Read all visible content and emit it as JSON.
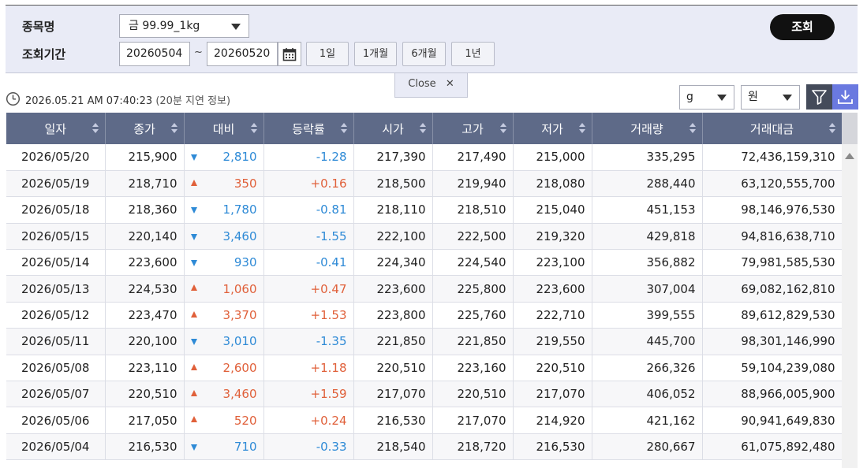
{
  "search": {
    "item_label": "종목명",
    "period_label": "조회기간",
    "item_value": "금 99.99_1kg",
    "date_from": "20260504",
    "date_separator": "~",
    "date_to": "20260520",
    "period_buttons": [
      "1일",
      "1개월",
      "6개월",
      "1년"
    ],
    "search_button": "조회",
    "close_label": "Close"
  },
  "info": {
    "timestamp": "2026.05.21 AM 07:40:23",
    "delay_note": "(20분 지연 정보)"
  },
  "units": {
    "weight": "g",
    "currency": "원"
  },
  "colors": {
    "header_bg": "#5e6a88",
    "up": "#e0603a",
    "down": "#2e8ad6",
    "search_button_bg": "#111111",
    "download_bg": "#6a79e0"
  },
  "table": {
    "columns": [
      "일자",
      "종가",
      "대비",
      "등락률",
      "시가",
      "고가",
      "저가",
      "거래량",
      "거래대금"
    ],
    "rows": [
      {
        "date": "2026/05/20",
        "close": "215,900",
        "dir": "down",
        "change": "2,810",
        "rate": "-1.28",
        "open": "217,390",
        "high": "217,490",
        "low": "215,000",
        "volume": "335,295",
        "amount": "72,436,159,310"
      },
      {
        "date": "2026/05/19",
        "close": "218,710",
        "dir": "up",
        "change": "350",
        "rate": "+0.16",
        "open": "218,500",
        "high": "219,940",
        "low": "218,080",
        "volume": "288,440",
        "amount": "63,120,555,700"
      },
      {
        "date": "2026/05/18",
        "close": "218,360",
        "dir": "down",
        "change": "1,780",
        "rate": "-0.81",
        "open": "218,110",
        "high": "218,510",
        "low": "215,040",
        "volume": "451,153",
        "amount": "98,146,976,530"
      },
      {
        "date": "2026/05/15",
        "close": "220,140",
        "dir": "down",
        "change": "3,460",
        "rate": "-1.55",
        "open": "222,100",
        "high": "222,500",
        "low": "219,320",
        "volume": "429,818",
        "amount": "94,816,638,710"
      },
      {
        "date": "2026/05/14",
        "close": "223,600",
        "dir": "down",
        "change": "930",
        "rate": "-0.41",
        "open": "224,340",
        "high": "224,540",
        "low": "223,100",
        "volume": "356,882",
        "amount": "79,981,585,530"
      },
      {
        "date": "2026/05/13",
        "close": "224,530",
        "dir": "up",
        "change": "1,060",
        "rate": "+0.47",
        "open": "223,600",
        "high": "225,800",
        "low": "223,600",
        "volume": "307,004",
        "amount": "69,082,162,810"
      },
      {
        "date": "2026/05/12",
        "close": "223,470",
        "dir": "up",
        "change": "3,370",
        "rate": "+1.53",
        "open": "223,800",
        "high": "225,760",
        "low": "222,710",
        "volume": "399,555",
        "amount": "89,612,829,530"
      },
      {
        "date": "2026/05/11",
        "close": "220,100",
        "dir": "down",
        "change": "3,010",
        "rate": "-1.35",
        "open": "221,850",
        "high": "221,850",
        "low": "219,550",
        "volume": "445,700",
        "amount": "98,301,146,990"
      },
      {
        "date": "2026/05/08",
        "close": "223,110",
        "dir": "up",
        "change": "2,600",
        "rate": "+1.18",
        "open": "220,510",
        "high": "223,160",
        "low": "220,510",
        "volume": "266,326",
        "amount": "59,104,239,080"
      },
      {
        "date": "2026/05/07",
        "close": "220,510",
        "dir": "up",
        "change": "3,460",
        "rate": "+1.59",
        "open": "217,070",
        "high": "220,510",
        "low": "217,070",
        "volume": "406,052",
        "amount": "88,966,005,900"
      },
      {
        "date": "2026/05/06",
        "close": "217,050",
        "dir": "up",
        "change": "520",
        "rate": "+0.24",
        "open": "216,530",
        "high": "217,070",
        "low": "214,920",
        "volume": "421,162",
        "amount": "90,941,649,830"
      },
      {
        "date": "2026/05/04",
        "close": "216,530",
        "dir": "down",
        "change": "710",
        "rate": "-0.33",
        "open": "218,540",
        "high": "218,720",
        "low": "216,530",
        "volume": "280,667",
        "amount": "61,075,892,480"
      }
    ]
  }
}
